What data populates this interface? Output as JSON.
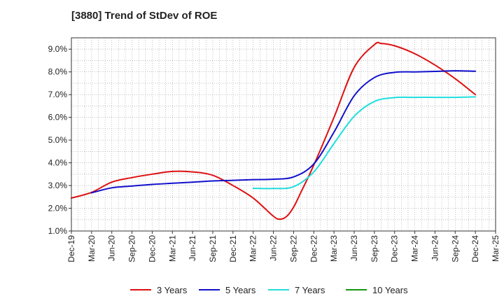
{
  "chart_data": {
    "type": "line",
    "title": "[3880]  Trend of StDev of ROE",
    "xlabel": "",
    "ylabel": "",
    "x_ticks": [
      "Dec-19",
      "Mar-20",
      "Jun-20",
      "Sep-20",
      "Dec-20",
      "Mar-21",
      "Jun-21",
      "Sep-21",
      "Dec-21",
      "Mar-22",
      "Jun-22",
      "Sep-22",
      "Dec-22",
      "Mar-23",
      "Jun-23",
      "Sep-23",
      "Dec-23",
      "Mar-24",
      "Jun-24",
      "Sep-24",
      "Dec-24",
      "Mar-25"
    ],
    "y_ticks": [
      "1.0%",
      "2.0%",
      "3.0%",
      "4.0%",
      "5.0%",
      "6.0%",
      "7.0%",
      "8.0%",
      "9.0%"
    ],
    "ylim": [
      1.0,
      9.5
    ],
    "grid": true,
    "legend_position": "bottom",
    "series": [
      {
        "name": "3 Years",
        "color": "#dd1111",
        "points": [
          [
            "Dec-19",
            2.45
          ],
          [
            "Mar-20",
            2.7
          ],
          [
            "Jun-20",
            3.15
          ],
          [
            "Sep-20",
            3.35
          ],
          [
            "Dec-20",
            3.5
          ],
          [
            "Mar-21",
            3.62
          ],
          [
            "Jun-21",
            3.6
          ],
          [
            "Sep-21",
            3.45
          ],
          [
            "Dec-21",
            3.0
          ],
          [
            "Mar-22",
            2.45
          ],
          [
            "Jun-22",
            1.65
          ],
          [
            "Jul-22",
            1.52
          ],
          [
            "Aug-22",
            1.65
          ],
          [
            "Sep-22",
            2.05
          ],
          [
            "Oct-22",
            2.65
          ],
          [
            "Dec-22",
            3.9
          ],
          [
            "Mar-23",
            6.0
          ],
          [
            "Jun-23",
            8.2
          ],
          [
            "Sep-23",
            9.2
          ],
          [
            "Oct-23",
            9.25
          ],
          [
            "Dec-23",
            9.15
          ],
          [
            "Mar-24",
            8.8
          ],
          [
            "Jun-24",
            8.3
          ],
          [
            "Sep-24",
            7.7
          ],
          [
            "Dec-24",
            7.0
          ]
        ]
      },
      {
        "name": "5 Years",
        "color": "#1111cc",
        "points": [
          [
            "Mar-20",
            2.68
          ],
          [
            "Jun-20",
            2.9
          ],
          [
            "Sep-20",
            2.98
          ],
          [
            "Dec-20",
            3.05
          ],
          [
            "Mar-21",
            3.1
          ],
          [
            "Jun-21",
            3.15
          ],
          [
            "Sep-21",
            3.2
          ],
          [
            "Dec-21",
            3.23
          ],
          [
            "Mar-22",
            3.26
          ],
          [
            "Jun-22",
            3.28
          ],
          [
            "Sep-22",
            3.38
          ],
          [
            "Dec-22",
            3.95
          ],
          [
            "Mar-23",
            5.35
          ],
          [
            "Jun-23",
            6.95
          ],
          [
            "Sep-23",
            7.75
          ],
          [
            "Dec-23",
            7.98
          ],
          [
            "Mar-24",
            8.0
          ],
          [
            "Jun-24",
            8.02
          ],
          [
            "Sep-24",
            8.05
          ],
          [
            "Dec-24",
            8.03
          ]
        ]
      },
      {
        "name": "7 Years",
        "color": "#22dddd",
        "points": [
          [
            "Mar-22",
            2.88
          ],
          [
            "Jun-22",
            2.87
          ],
          [
            "Sep-22",
            2.95
          ],
          [
            "Dec-22",
            3.6
          ],
          [
            "Mar-23",
            4.85
          ],
          [
            "Jun-23",
            6.05
          ],
          [
            "Sep-23",
            6.7
          ],
          [
            "Dec-23",
            6.87
          ],
          [
            "Mar-24",
            6.88
          ],
          [
            "Jun-24",
            6.88
          ],
          [
            "Sep-24",
            6.88
          ],
          [
            "Dec-24",
            6.9
          ]
        ]
      },
      {
        "name": "10 Years",
        "color": "#119911",
        "points": []
      }
    ]
  }
}
